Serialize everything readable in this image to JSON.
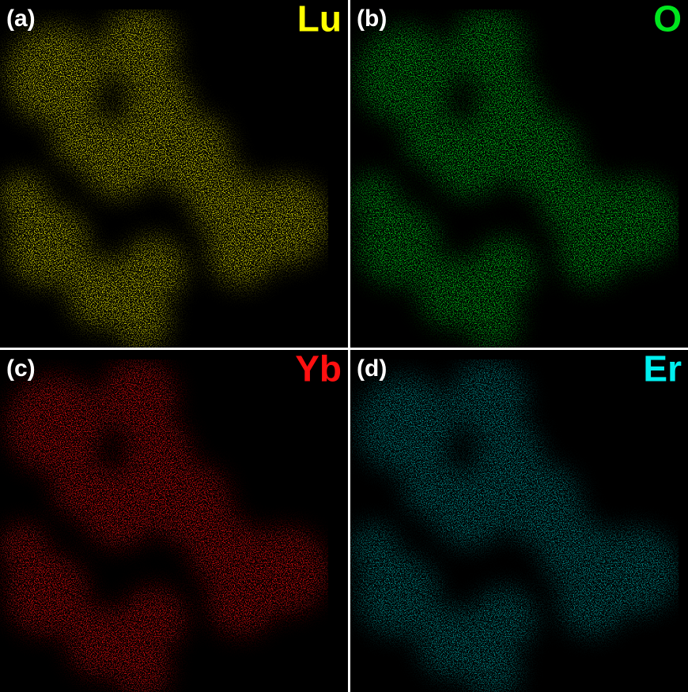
{
  "panels": [
    {
      "label": "(a)",
      "element": "Lu",
      "color": "#ffff00"
    },
    {
      "label": "(b)",
      "element": "O",
      "color": "#00e61e"
    },
    {
      "label": "(c)",
      "element": "Yb",
      "color": "#ff1010"
    },
    {
      "label": "(d)",
      "element": "Er",
      "color": "#00f0f0"
    }
  ]
}
